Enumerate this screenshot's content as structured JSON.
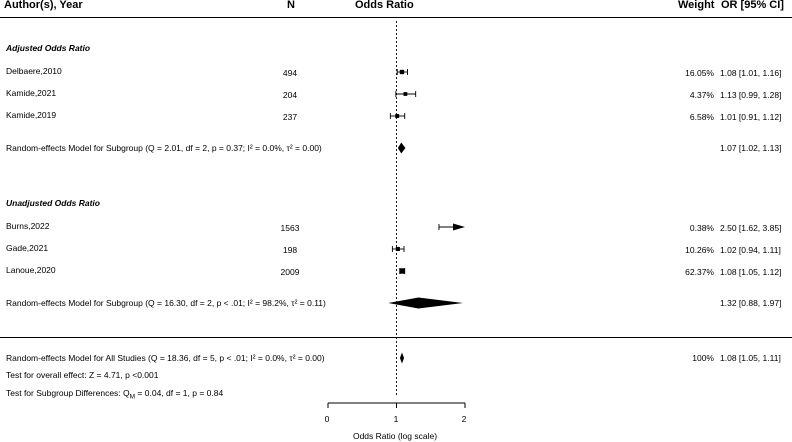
{
  "chart_data": {
    "type": "forest",
    "headers": {
      "study": "Author(s), Year",
      "n": "N",
      "plot": "Odds Ratio",
      "weight": "Weight",
      "or": "OR [95% CI]"
    },
    "groups": [
      {
        "label": "Adjusted Odds Ratio",
        "studies": [
          {
            "study": "Delbaere,2010",
            "n": "494",
            "weight": "16.05%",
            "or_text": "1.08 [1.01, 1.16]",
            "or": 1.08,
            "lo": 1.01,
            "hi": 1.16
          },
          {
            "study": "Kamide,2021",
            "n": "204",
            "weight": "4.37%",
            "or_text": "1.13 [0.99, 1.28]",
            "or": 1.13,
            "lo": 0.99,
            "hi": 1.28
          },
          {
            "study": "Kamide,2019",
            "n": "237",
            "weight": "6.58%",
            "or_text": "1.01 [0.91, 1.12]",
            "or": 1.01,
            "lo": 0.91,
            "hi": 1.12
          }
        ],
        "model": {
          "label": "Random-effects Model for Subgroup (Q = 2.01, df = 2, p = 0.37; I² = 0.0%, τ² = 0.00)",
          "or_text": "1.07 [1.02, 1.13]",
          "or": 1.07,
          "lo": 1.02,
          "hi": 1.13
        }
      },
      {
        "label": "Unadjusted Odds Ratio",
        "studies": [
          {
            "study": "Burns,2022",
            "n": "1563",
            "weight": "0.38%",
            "or_text": "2.50 [1.62, 3.85]",
            "or": 2.5,
            "lo": 1.62,
            "hi": 3.85
          },
          {
            "study": "Gade,2021",
            "n": "198",
            "weight": "10.26%",
            "or_text": "1.02 [0.94, 1.11]",
            "or": 1.02,
            "lo": 0.94,
            "hi": 1.11
          },
          {
            "study": "Lanoue,2020",
            "n": "2009",
            "weight": "62.37%",
            "or_text": "1.08 [1.05, 1.12]",
            "or": 1.08,
            "lo": 1.05,
            "hi": 1.12
          }
        ],
        "model": {
          "label": "Random-effects Model for Subgroup (Q = 16.30, df = 2, p < .01; I² = 98.2%, τ² = 0.11)",
          "or_text": "1.32 [0.88, 1.97]",
          "or": 1.32,
          "lo": 0.88,
          "hi": 1.97
        }
      }
    ],
    "overall": {
      "label": "Random-effects Model for All Studies (Q = 18.36, df = 5, p < .01; I² = 0.0%, τ² = 0.00)",
      "weight": "100%",
      "or_text": "1.08 [1.05, 1.11]",
      "or": 1.08,
      "lo": 1.05,
      "hi": 1.11
    },
    "test_overall": "Test for overall effect: Z = 4.71, p <0.001",
    "test_subgroup": "Test for Subgroup Differences: Q",
    "test_subgroup_sub": "M",
    "test_subgroup_rest": " = 0.04, df = 1, p = 0.84",
    "xlabel": "Odds Ratio (log scale)",
    "xticks": [
      "0",
      "1",
      "2"
    ],
    "xlim": [
      0,
      2
    ],
    "reference_line": 1
  }
}
